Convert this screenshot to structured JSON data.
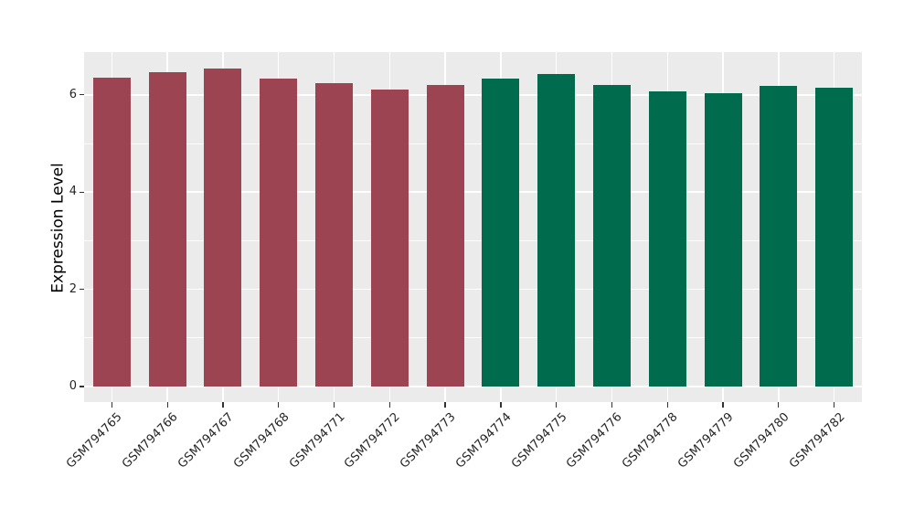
{
  "figure": {
    "background_color": "#FFFFFF"
  },
  "chart_data": {
    "type": "bar",
    "title": "",
    "xlabel": "",
    "ylabel": "Expression Level",
    "ylim": [
      -0.33,
      6.88
    ],
    "yticks_major": [
      0,
      2,
      4,
      6
    ],
    "yticks_minor": [
      1,
      3,
      5
    ],
    "grid": "on",
    "legend": "none",
    "panel_background_color": "#EBEBEB",
    "gridline_color": "#FFFFFF",
    "categories": [
      "GSM794765",
      "GSM794766",
      "GSM794767",
      "GSM794768",
      "GSM794771",
      "GSM794772",
      "GSM794773",
      "GSM794774",
      "GSM794775",
      "GSM794776",
      "GSM794778",
      "GSM794779",
      "GSM794780",
      "GSM794782"
    ],
    "values": [
      6.35,
      6.47,
      6.54,
      6.33,
      6.24,
      6.11,
      6.2,
      6.33,
      6.43,
      6.2,
      6.07,
      6.03,
      6.19,
      6.15
    ],
    "bar_colors": [
      "#9D4452",
      "#9D4452",
      "#9D4452",
      "#9D4452",
      "#9D4452",
      "#9D4452",
      "#9D4452",
      "#006B4D",
      "#006B4D",
      "#006B4D",
      "#006B4D",
      "#006B4D",
      "#006B4D",
      "#006B4D"
    ],
    "group_colors": {
      "left_group": "#9D4452",
      "right_group": "#006B4D"
    }
  }
}
